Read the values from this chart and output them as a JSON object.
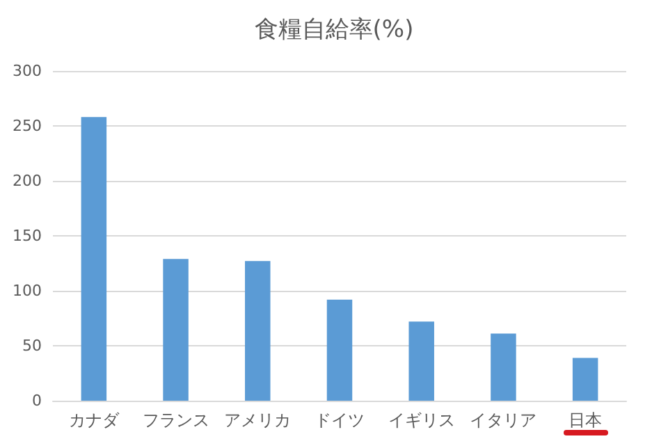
{
  "chart_data": {
    "type": "bar",
    "title": "食糧自給率(%)",
    "categories": [
      "カナダ",
      "フランス",
      "アメリカ",
      "ドイツ",
      "イギリス",
      "イタリア",
      "日本"
    ],
    "values": [
      258,
      129,
      127,
      92,
      72,
      61,
      39
    ],
    "color": "#5b9bd5",
    "ylim": [
      0,
      300
    ],
    "yticks": [
      0,
      50,
      100,
      150,
      200,
      250,
      300
    ],
    "grid": "y"
  }
}
